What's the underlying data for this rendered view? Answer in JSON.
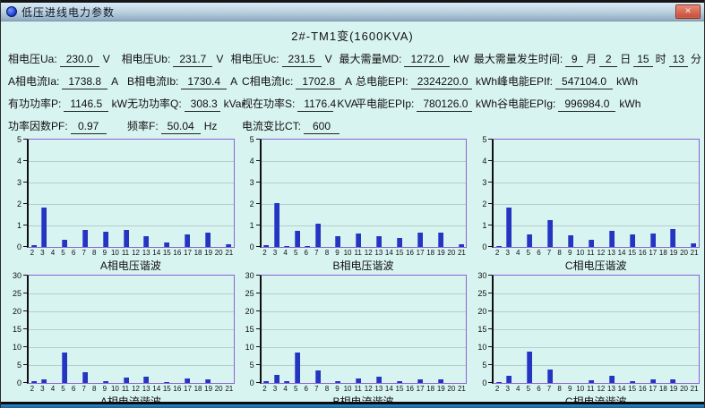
{
  "window": {
    "title": "低压进线电力参数",
    "close_glyph": "✕"
  },
  "header": {
    "title": "2#-TM1变(1600KVA)"
  },
  "params": {
    "ua": {
      "label": "相电压Ua:",
      "value": "230.0",
      "unit": "V"
    },
    "ub": {
      "label": "相电压Ub:",
      "value": "231.7",
      "unit": "V"
    },
    "uc": {
      "label": "相电压Uc:",
      "value": "231.5",
      "unit": "V"
    },
    "md": {
      "label": "最大需量MD:",
      "value": "1272.0",
      "unit": "kW"
    },
    "md_time": {
      "label": "最大需量发生时间:",
      "m": {
        "value": "9",
        "unit": "月"
      },
      "d": {
        "value": "2",
        "unit": "日"
      },
      "h": {
        "value": "15",
        "unit": "时"
      },
      "min": {
        "value": "13",
        "unit": "分"
      }
    },
    "ia": {
      "label": "A相电流Ia:",
      "value": "1738.8",
      "unit": "A"
    },
    "ib": {
      "label": "B相电流Ib:",
      "value": "1730.4",
      "unit": "A"
    },
    "ic": {
      "label": "C相电流Ic:",
      "value": "1702.8",
      "unit": "A"
    },
    "epi": {
      "label": "总电能EPI:",
      "value": "2324220.0",
      "unit": "kWh"
    },
    "epif": {
      "label": "峰电能EPIf:",
      "value": "547104.0",
      "unit": "kWh"
    },
    "p": {
      "label": "有功功率P:",
      "value": "1146.5",
      "unit": "kW"
    },
    "q": {
      "label": "无功功率Q:",
      "value": "308.3",
      "unit": "kVar"
    },
    "s": {
      "label": "视在功率S:",
      "value": "1176.4",
      "unit": "KVA"
    },
    "epip": {
      "label": "平电能EPIp:",
      "value": "780126.0",
      "unit": "kWh"
    },
    "epig": {
      "label": "谷电能EPIg:",
      "value": "996984.0",
      "unit": "kWh"
    },
    "pf": {
      "label": "功率因数PF:",
      "value": "0.97",
      "unit": ""
    },
    "f": {
      "label": "频率F:",
      "value": "50.04",
      "unit": "Hz"
    },
    "ct": {
      "label": "电流变比CT:",
      "value": "600",
      "unit": ""
    }
  },
  "colors": {
    "bar": "#2435c0",
    "chart_border": "#8c62d4",
    "grid_line": "#b7cdcb",
    "client_bg": "#d8f4f0",
    "titlebar_bottom": "#8fa9bf",
    "close_red": "#c84a38"
  },
  "chart_data": [
    {
      "type": "bar",
      "title": "A相电压谐波",
      "categories": [
        "2",
        "3",
        "4",
        "5",
        "6",
        "7",
        "8",
        "9",
        "10",
        "11",
        "12",
        "13",
        "14",
        "15",
        "16",
        "17",
        "18",
        "19",
        "20",
        "21"
      ],
      "values": [
        0.07,
        1.85,
        0,
        0.35,
        0,
        0.78,
        0,
        0.72,
        0,
        0.78,
        0,
        0.52,
        0,
        0.22,
        0,
        0.57,
        0,
        0.65,
        0,
        0.13
      ],
      "ylim": [
        0,
        5
      ],
      "yticks": [
        0,
        1,
        2,
        3,
        4,
        5
      ],
      "grid": true,
      "legend": false
    },
    {
      "type": "bar",
      "title": "B相电压谐波",
      "categories": [
        "2",
        "3",
        "4",
        "5",
        "6",
        "7",
        "8",
        "9",
        "10",
        "11",
        "12",
        "13",
        "14",
        "15",
        "16",
        "17",
        "18",
        "19",
        "20",
        "21"
      ],
      "values": [
        0.07,
        2.03,
        0.05,
        0.73,
        0.05,
        1.1,
        0,
        0.52,
        0,
        0.62,
        0,
        0.5,
        0,
        0.42,
        0,
        0.68,
        0,
        0.67,
        0,
        0.13
      ],
      "ylim": [
        0,
        5
      ],
      "yticks": [
        0,
        1,
        2,
        3,
        4,
        5
      ],
      "grid": true,
      "legend": false
    },
    {
      "type": "bar",
      "title": "C相电压谐波",
      "categories": [
        "2",
        "3",
        "4",
        "5",
        "6",
        "7",
        "8",
        "9",
        "10",
        "11",
        "12",
        "13",
        "14",
        "15",
        "16",
        "17",
        "18",
        "19",
        "20",
        "21"
      ],
      "values": [
        0.06,
        1.85,
        0,
        0.57,
        0,
        1.25,
        0,
        0.55,
        0,
        0.32,
        0,
        0.73,
        0,
        0.57,
        0,
        0.62,
        0,
        0.83,
        0,
        0.17
      ],
      "ylim": [
        0,
        5
      ],
      "yticks": [
        0,
        1,
        2,
        3,
        4,
        5
      ],
      "grid": true,
      "legend": false
    },
    {
      "type": "bar",
      "title": "A相电流谐波",
      "categories": [
        "2",
        "3",
        "4",
        "5",
        "6",
        "7",
        "8",
        "9",
        "10",
        "11",
        "12",
        "13",
        "14",
        "15",
        "16",
        "17",
        "18",
        "19",
        "20",
        "21"
      ],
      "values": [
        0.4,
        1.0,
        0,
        8.4,
        0,
        3.1,
        0,
        0.4,
        0,
        1.5,
        0,
        1.7,
        0,
        0.3,
        0,
        1.2,
        0,
        0.9,
        0,
        0
      ],
      "ylim": [
        0,
        30
      ],
      "yticks": [
        0,
        5,
        10,
        15,
        20,
        25,
        30
      ],
      "grid": true,
      "legend": false
    },
    {
      "type": "bar",
      "title": "B相电流谐波",
      "categories": [
        "2",
        "3",
        "4",
        "5",
        "6",
        "7",
        "8",
        "9",
        "10",
        "11",
        "12",
        "13",
        "14",
        "15",
        "16",
        "17",
        "18",
        "19",
        "20",
        "21"
      ],
      "values": [
        0.4,
        2.2,
        0.4,
        8.6,
        0,
        3.4,
        0,
        0.4,
        0,
        1.3,
        0,
        1.7,
        0,
        0.4,
        0,
        1.1,
        0,
        0.9,
        0,
        0
      ],
      "ylim": [
        0,
        30
      ],
      "yticks": [
        0,
        5,
        10,
        15,
        20,
        25,
        30
      ],
      "grid": true,
      "legend": false
    },
    {
      "type": "bar",
      "title": "C相电流谐波",
      "categories": [
        "2",
        "3",
        "4",
        "5",
        "6",
        "7",
        "8",
        "9",
        "10",
        "11",
        "12",
        "13",
        "14",
        "15",
        "16",
        "17",
        "18",
        "19",
        "20",
        "21"
      ],
      "values": [
        0.3,
        1.9,
        0,
        8.8,
        0,
        3.7,
        0,
        0,
        0,
        0.8,
        0,
        2.0,
        0,
        0.4,
        0,
        1.0,
        0,
        1.0,
        0,
        0
      ],
      "ylim": [
        0,
        30
      ],
      "yticks": [
        0,
        5,
        10,
        15,
        20,
        25,
        30
      ],
      "grid": true,
      "legend": false
    }
  ]
}
